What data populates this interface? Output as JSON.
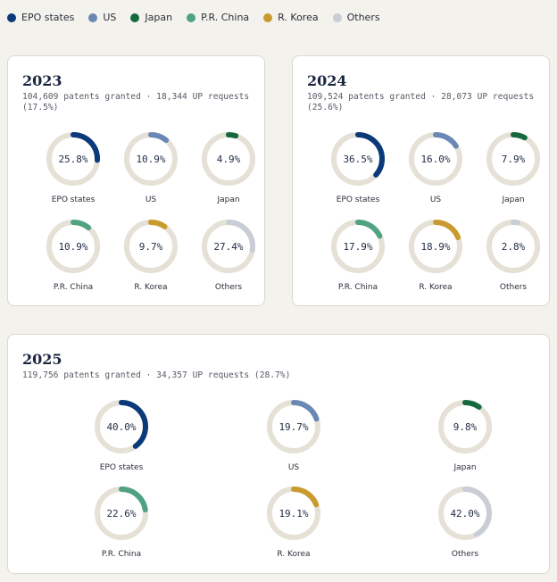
{
  "legend": [
    {
      "name": "EPO states",
      "color": "#0b3a7a"
    },
    {
      "name": "US",
      "color": "#6a87b5"
    },
    {
      "name": "Japan",
      "color": "#16683f"
    },
    {
      "name": "P.R. China",
      "color": "#4fa383"
    },
    {
      "name": "R. Korea",
      "color": "#c99a2e"
    },
    {
      "name": "Others",
      "color": "#c9cdd6"
    }
  ],
  "track_color": "#e6e1d6",
  "chart_data": [
    {
      "type": "donut",
      "title": "2023",
      "subtitle": "104,609 patents granted · 18,344 UP requests (17.5%)",
      "categories": [
        "EPO states",
        "US",
        "Japan",
        "P.R. China",
        "R. Korea",
        "Others"
      ],
      "values": [
        25.8,
        10.9,
        4.9,
        10.9,
        9.7,
        27.4
      ],
      "labels": [
        "25.8%",
        "10.9%",
        "4.9%",
        "10.9%",
        "9.7%",
        "27.4%"
      ],
      "unit": "%"
    },
    {
      "type": "donut",
      "title": "2024",
      "subtitle": "109,524 patents granted · 28,073 UP requests (25.6%)",
      "categories": [
        "EPO states",
        "US",
        "Japan",
        "P.R. China",
        "R. Korea",
        "Others"
      ],
      "values": [
        36.5,
        16.0,
        7.9,
        17.9,
        18.9,
        2.8
      ],
      "labels": [
        "36.5%",
        "16.0%",
        "7.9%",
        "17.9%",
        "18.9%",
        "2.8%"
      ],
      "unit": "%"
    },
    {
      "type": "donut",
      "title": "2025",
      "subtitle": "119,756 patents granted · 34,357 UP requests (28.7%)",
      "categories": [
        "EPO states",
        "US",
        "Japan",
        "P.R. China",
        "R. Korea",
        "Others"
      ],
      "values": [
        40.0,
        19.7,
        9.8,
        22.6,
        19.1,
        42.0
      ],
      "labels": [
        "40.0%",
        "19.7%",
        "9.8%",
        "22.6%",
        "19.1%",
        "42.0%"
      ],
      "unit": "%"
    }
  ]
}
